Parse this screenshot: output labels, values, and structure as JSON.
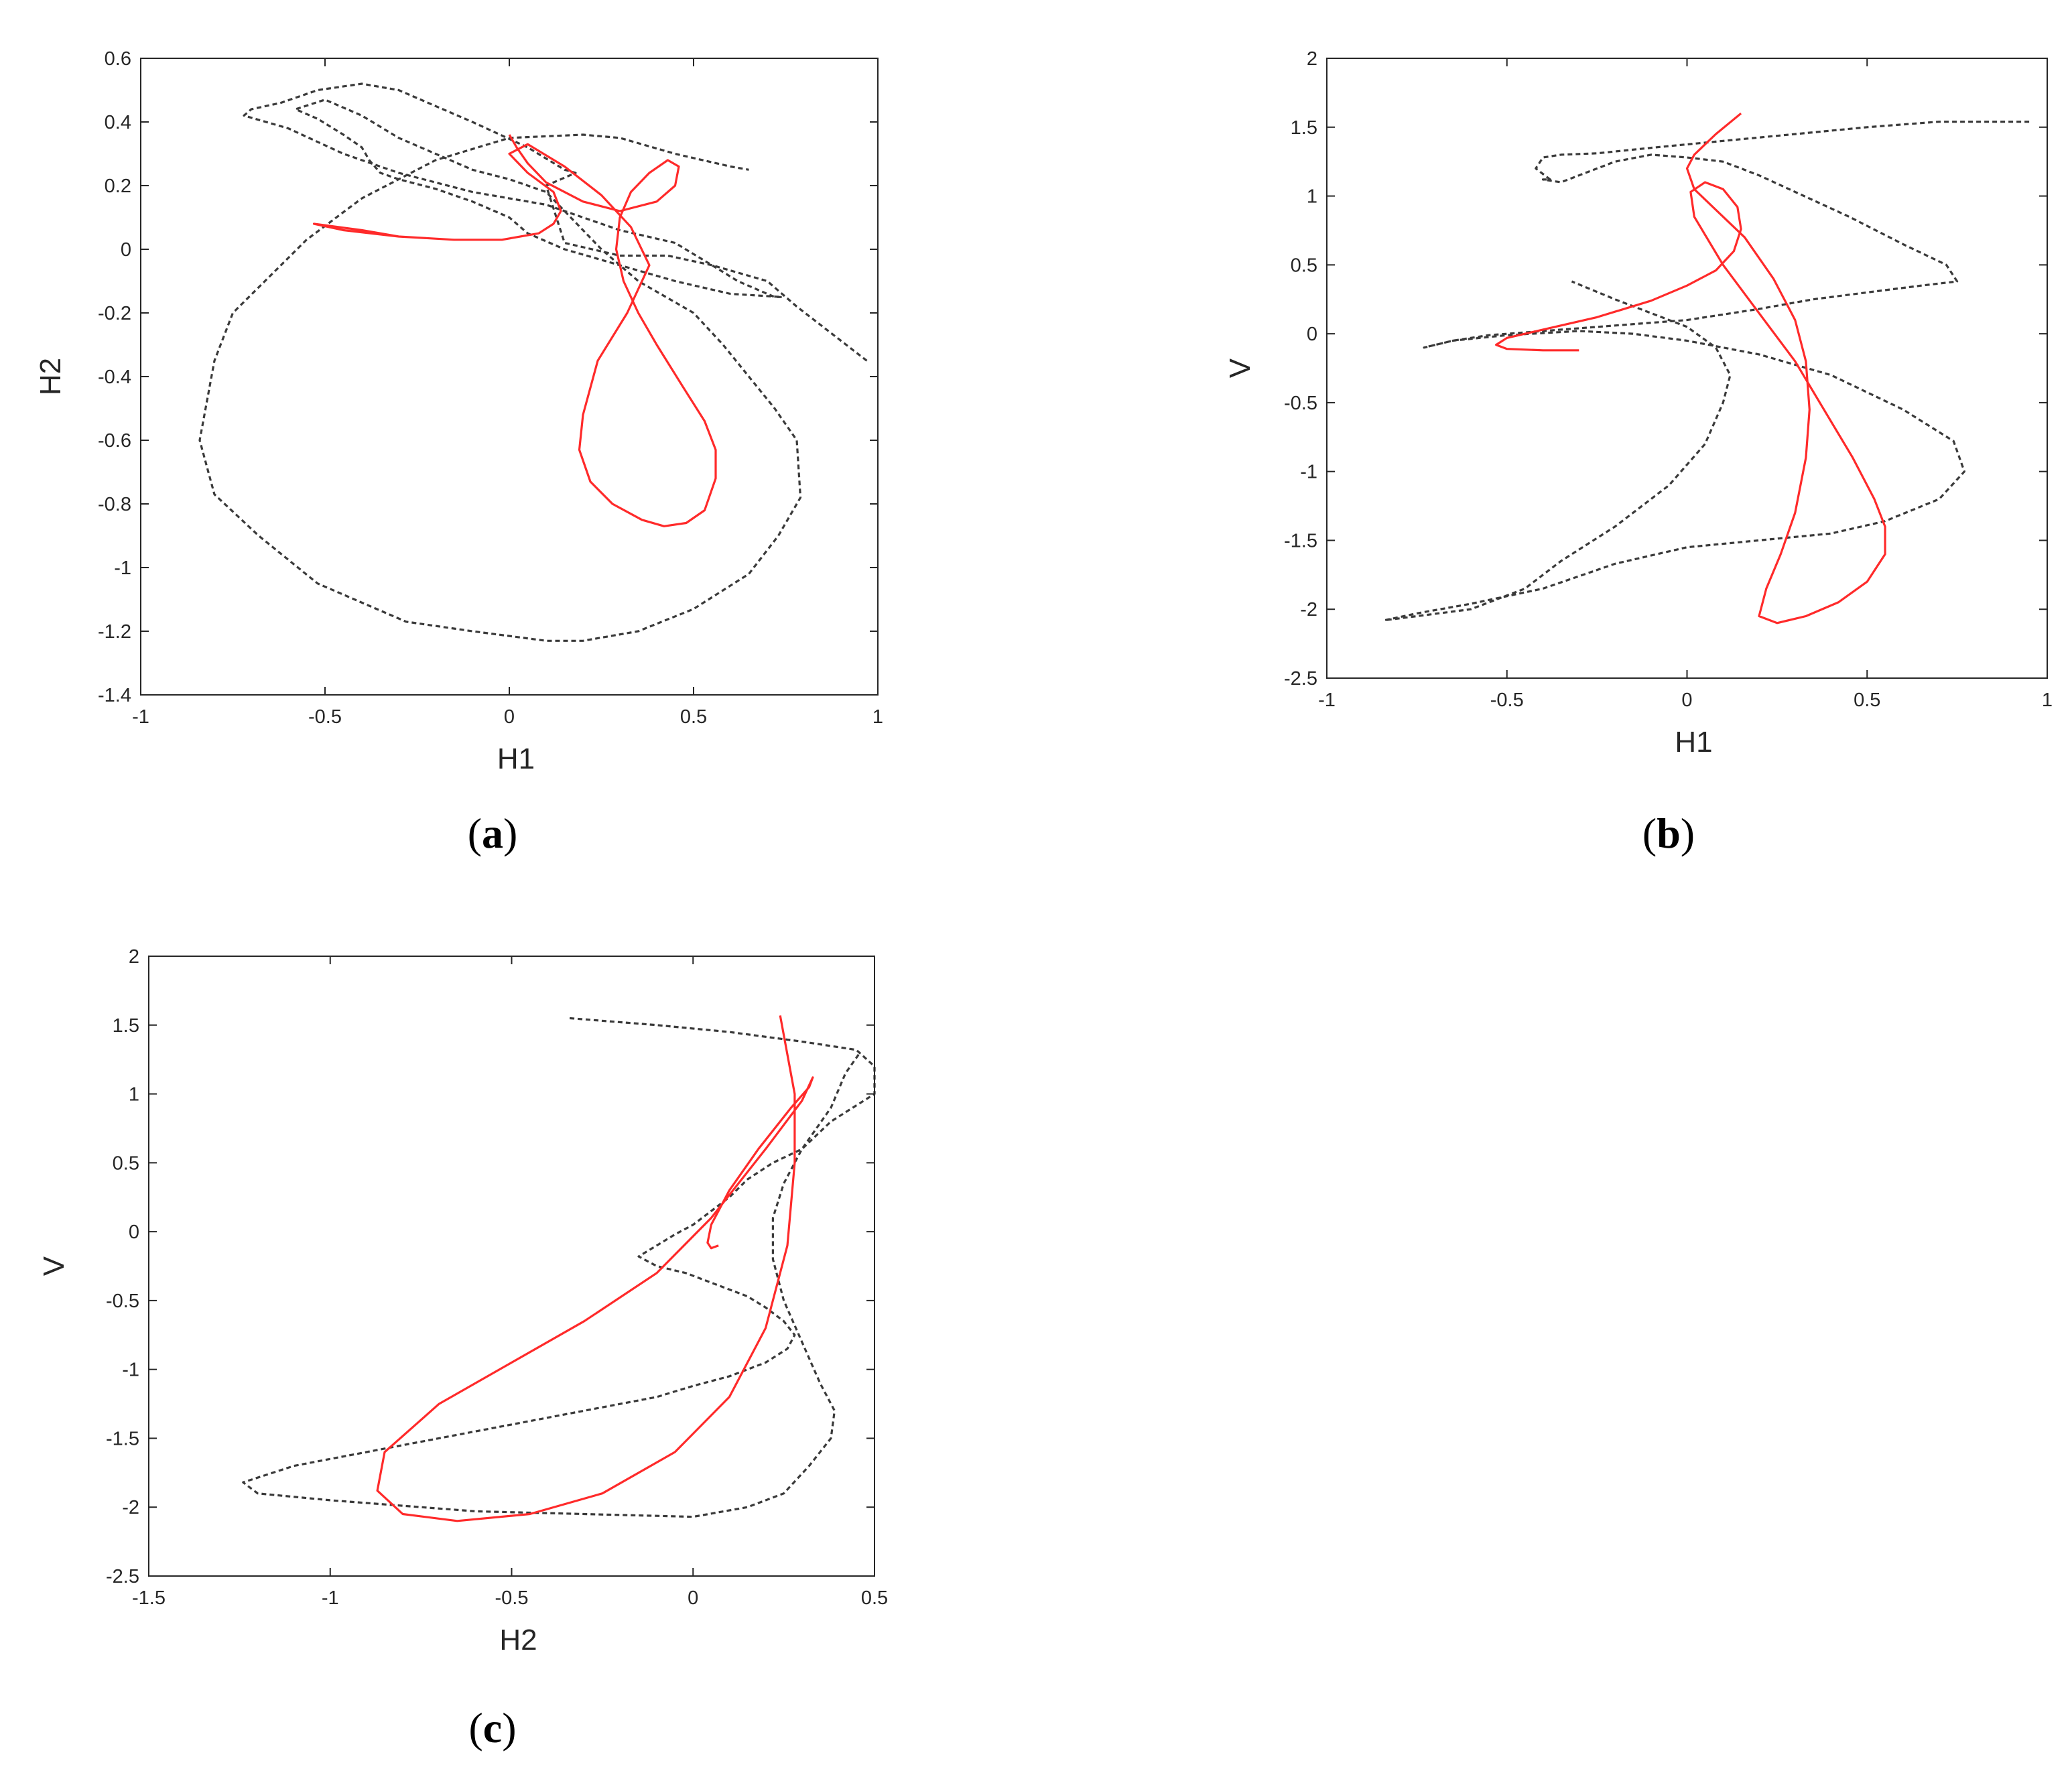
{
  "colors": {
    "reference": "#3a3a3a",
    "prediction": "#ff2a2a",
    "axis": "#262626"
  },
  "chart_data": [
    {
      "id": "a",
      "type": "line",
      "panel_label": "a",
      "xlabel": "H1",
      "ylabel": "H2",
      "xlim": [
        -1,
        1
      ],
      "ylim": [
        -1.4,
        0.6
      ],
      "xticks": [
        -1,
        -0.5,
        0,
        0.5,
        1
      ],
      "yticks": [
        -1.4,
        -1.2,
        -1,
        -0.8,
        -0.6,
        -0.4,
        -0.2,
        0,
        0.2,
        0.4,
        0.6
      ],
      "xtick_labels": [
        "-1",
        "-0.5",
        "0",
        "0.5",
        "1"
      ],
      "ytick_labels": [
        "-1.4",
        "-1.2",
        "-1",
        "-0.8",
        "-0.6",
        "-0.4",
        "-0.2",
        "0",
        "0.2",
        "0.4",
        "0.6"
      ],
      "series": [
        {
          "style": "dashed",
          "color": "#3a3a3a",
          "x": [
            0.97,
            0.78,
            0.7,
            0.55,
            0.43,
            0.3,
            0.15,
            0.1,
            0.18,
            0.15,
            0.05,
            -0.1,
            -0.2,
            -0.3,
            -0.4,
            -0.52,
            -0.62,
            -0.7,
            -0.72,
            -0.6,
            -0.45,
            -0.3,
            -0.1,
            0.1,
            0.2,
            0.3,
            0.45,
            0.55,
            0.62,
            0.72,
            0.74,
            0.6,
            0.45,
            0.3,
            0.15,
            0.05,
            0.0,
            -0.1,
            -0.2,
            -0.3,
            -0.35,
            -0.38,
            -0.4,
            -0.45,
            -0.52,
            -0.58,
            -0.5,
            -0.4,
            -0.3,
            -0.2,
            -0.1,
            0.0,
            0.05,
            0.1,
            0.15,
            0.25,
            0.35,
            0.5,
            0.58,
            0.65,
            0.72,
            0.78,
            0.79,
            0.73,
            0.65,
            0.5,
            0.35,
            0.2,
            0.1,
            -0.1,
            -0.28,
            -0.52,
            -0.68,
            -0.8,
            -0.84,
            -0.8,
            -0.75,
            -0.55,
            -0.4,
            -0.2,
            0.0,
            0.2,
            0.3,
            0.45,
            0.6,
            0.65
          ],
          "y": [
            -0.35,
            -0.18,
            -0.1,
            -0.05,
            -0.02,
            -0.02,
            0.02,
            0.2,
            0.24,
            0.25,
            0.32,
            0.4,
            0.45,
            0.5,
            0.52,
            0.5,
            0.46,
            0.44,
            0.42,
            0.38,
            0.3,
            0.24,
            0.18,
            0.14,
            0.1,
            0.06,
            0.02,
            -0.05,
            -0.1,
            -0.15,
            -0.15,
            -0.14,
            -0.1,
            -0.05,
            0.0,
            0.05,
            0.1,
            0.15,
            0.19,
            0.22,
            0.24,
            0.28,
            0.32,
            0.36,
            0.41,
            0.44,
            0.47,
            0.42,
            0.35,
            0.3,
            0.25,
            0.22,
            0.2,
            0.18,
            0.12,
            0.0,
            -0.1,
            -0.2,
            -0.3,
            -0.4,
            -0.5,
            -0.6,
            -0.78,
            -0.9,
            -1.02,
            -1.13,
            -1.2,
            -1.23,
            -1.23,
            -1.2,
            -1.17,
            -1.05,
            -0.9,
            -0.77,
            -0.6,
            -0.35,
            -0.2,
            0.03,
            0.16,
            0.28,
            0.35,
            0.36,
            0.35,
            0.3,
            0.26,
            0.25
          ]
        },
        {
          "style": "solid",
          "color": "#ff2a2a",
          "x": [
            -0.3,
            -0.4,
            -0.53,
            -0.45,
            -0.3,
            -0.15,
            -0.02,
            0.08,
            0.12,
            0.14,
            0.12,
            0.05,
            0.0,
            0.05,
            0.15,
            0.25,
            0.33,
            0.38,
            0.32,
            0.24,
            0.2,
            0.19,
            0.22,
            0.28,
            0.36,
            0.42,
            0.48,
            0.53,
            0.56,
            0.56,
            0.53,
            0.47,
            0.4,
            0.35,
            0.31,
            0.29,
            0.3,
            0.33,
            0.38,
            0.43,
            0.46,
            0.45,
            0.4,
            0.3,
            0.2,
            0.1,
            0.05,
            0.02,
            0.0
          ],
          "y": [
            0.04,
            0.06,
            0.08,
            0.06,
            0.04,
            0.03,
            0.03,
            0.05,
            0.08,
            0.12,
            0.18,
            0.24,
            0.3,
            0.33,
            0.26,
            0.17,
            0.07,
            -0.05,
            -0.2,
            -0.35,
            -0.52,
            -0.63,
            -0.73,
            -0.8,
            -0.85,
            -0.87,
            -0.86,
            -0.82,
            -0.72,
            -0.63,
            -0.54,
            -0.43,
            -0.3,
            -0.2,
            -0.1,
            0.0,
            0.1,
            0.18,
            0.24,
            0.28,
            0.26,
            0.2,
            0.15,
            0.12,
            0.15,
            0.21,
            0.27,
            0.32,
            0.36
          ]
        }
      ]
    },
    {
      "id": "b",
      "type": "line",
      "panel_label": "b",
      "xlabel": "H1",
      "ylabel": "V",
      "xlim": [
        -1,
        1
      ],
      "ylim": [
        -2.5,
        2
      ],
      "xticks": [
        -1,
        -0.5,
        0,
        0.5,
        1
      ],
      "yticks": [
        -2.5,
        -2,
        -1.5,
        -1,
        -0.5,
        0,
        0.5,
        1,
        1.5,
        2
      ],
      "xtick_labels": [
        "-1",
        "-0.5",
        "0",
        "0.5",
        "1"
      ],
      "ytick_labels": [
        "-2.5",
        "-2",
        "-1.5",
        "-1",
        "-0.5",
        "0",
        "0.5",
        "1",
        "1.5",
        "2"
      ],
      "series": [
        {
          "style": "dashed",
          "color": "#3a3a3a",
          "x": [
            0.95,
            0.7,
            0.5,
            0.3,
            0.1,
            -0.1,
            -0.25,
            -0.35,
            -0.4,
            -0.42,
            -0.38,
            -0.4,
            -0.35,
            -0.3,
            -0.2,
            -0.1,
            0.0,
            0.1,
            0.2,
            0.3,
            0.45,
            0.6,
            0.72,
            0.75,
            0.65,
            0.5,
            0.35,
            0.2,
            0.0,
            -0.2,
            -0.4,
            -0.55,
            -0.65,
            -0.73,
            -0.65,
            -0.5,
            -0.3,
            -0.15,
            0.0,
            0.1,
            0.2,
            0.4,
            0.6,
            0.74,
            0.77,
            0.7,
            0.55,
            0.4,
            0.2,
            0.0,
            -0.2,
            -0.4,
            -0.6,
            -0.75,
            -0.84,
            -0.6,
            -0.45,
            -0.35,
            -0.2,
            -0.05,
            0.05,
            0.1,
            0.12,
            0.08,
            0.0,
            -0.1,
            -0.2,
            -0.32
          ],
          "y": [
            1.54,
            1.54,
            1.5,
            1.45,
            1.4,
            1.35,
            1.31,
            1.3,
            1.28,
            1.2,
            1.12,
            1.12,
            1.1,
            1.15,
            1.25,
            1.3,
            1.28,
            1.25,
            1.15,
            1.03,
            0.85,
            0.65,
            0.5,
            0.38,
            0.35,
            0.3,
            0.25,
            0.18,
            0.1,
            0.06,
            0.02,
            -0.01,
            -0.05,
            -0.1,
            -0.05,
            -0.01,
            0.02,
            0.0,
            -0.05,
            -0.1,
            -0.15,
            -0.3,
            -0.55,
            -0.78,
            -1.0,
            -1.2,
            -1.36,
            -1.45,
            -1.5,
            -1.55,
            -1.67,
            -1.85,
            -1.96,
            -2.03,
            -2.08,
            -2.0,
            -1.85,
            -1.65,
            -1.4,
            -1.1,
            -0.8,
            -0.5,
            -0.3,
            -0.1,
            0.05,
            0.15,
            0.25,
            0.38
          ]
        },
        {
          "style": "solid",
          "color": "#ff2a2a",
          "x": [
            -0.3,
            -0.4,
            -0.5,
            -0.53,
            -0.5,
            -0.4,
            -0.25,
            -0.1,
            0.0,
            0.08,
            0.13,
            0.15,
            0.14,
            0.1,
            0.05,
            0.01,
            0.02,
            0.1,
            0.2,
            0.3,
            0.38,
            0.46,
            0.52,
            0.55,
            0.55,
            0.5,
            0.42,
            0.33,
            0.25,
            0.2,
            0.22,
            0.26,
            0.3,
            0.33,
            0.34,
            0.33,
            0.3,
            0.24,
            0.16,
            0.08,
            0.02,
            0.0,
            0.02,
            0.08,
            0.15
          ],
          "y": [
            -0.12,
            -0.12,
            -0.11,
            -0.08,
            -0.03,
            0.03,
            0.12,
            0.24,
            0.35,
            0.46,
            0.6,
            0.76,
            0.92,
            1.05,
            1.1,
            1.03,
            0.85,
            0.5,
            0.15,
            -0.2,
            -0.55,
            -0.9,
            -1.2,
            -1.4,
            -1.6,
            -1.8,
            -1.95,
            -2.05,
            -2.1,
            -2.05,
            -1.85,
            -1.6,
            -1.3,
            -0.9,
            -0.55,
            -0.2,
            0.1,
            0.4,
            0.7,
            0.9,
            1.05,
            1.2,
            1.3,
            1.45,
            1.6
          ]
        }
      ]
    },
    {
      "id": "c",
      "type": "line",
      "panel_label": "c",
      "xlabel": "H2",
      "ylabel": "V",
      "xlim": [
        -1.5,
        0.5
      ],
      "ylim": [
        -2.5,
        2
      ],
      "xticks": [
        -1.5,
        -1,
        -0.5,
        0,
        0.5
      ],
      "yticks": [
        -2.5,
        -2,
        -1.5,
        -1,
        -0.5,
        0,
        0.5,
        1,
        1.5,
        2
      ],
      "xtick_labels": [
        "-1.5",
        "-1",
        "-0.5",
        "0",
        "0.5"
      ],
      "ytick_labels": [
        "-2.5",
        "-2",
        "-1.5",
        "-1",
        "-0.5",
        "0",
        "0.5",
        "1",
        "1.5",
        "2"
      ],
      "series": [
        {
          "style": "dashed",
          "color": "#3a3a3a",
          "x": [
            -0.34,
            -0.1,
            0.1,
            0.3,
            0.45,
            0.5,
            0.5,
            0.44,
            0.38,
            0.34,
            0.3,
            0.22,
            0.15,
            0.1,
            0.05,
            0.0,
            -0.05,
            -0.1,
            -0.15,
            -0.1,
            -0.02,
            0.06,
            0.15,
            0.2,
            0.25,
            0.28,
            0.26,
            0.2,
            0.1,
            0.0,
            -0.1,
            -0.3,
            -0.5,
            -0.7,
            -0.9,
            -1.1,
            -1.24,
            -1.2,
            -1.0,
            -0.6,
            -0.3,
            0.0,
            0.15,
            0.25,
            0.32,
            0.38,
            0.39,
            0.35,
            0.3,
            0.25,
            0.22,
            0.22,
            0.25,
            0.3,
            0.38,
            0.42,
            0.46
          ],
          "y": [
            1.55,
            1.5,
            1.45,
            1.38,
            1.32,
            1.2,
            1.0,
            0.9,
            0.8,
            0.7,
            0.6,
            0.5,
            0.38,
            0.25,
            0.15,
            0.05,
            -0.02,
            -0.1,
            -0.18,
            -0.25,
            -0.3,
            -0.38,
            -0.47,
            -0.55,
            -0.65,
            -0.75,
            -0.85,
            -0.95,
            -1.05,
            -1.12,
            -1.2,
            -1.3,
            -1.4,
            -1.5,
            -1.6,
            -1.7,
            -1.82,
            -1.9,
            -1.95,
            -2.03,
            -2.05,
            -2.07,
            -2.0,
            -1.9,
            -1.7,
            -1.5,
            -1.3,
            -1.1,
            -0.8,
            -0.5,
            -0.2,
            0.1,
            0.35,
            0.6,
            0.9,
            1.15,
            1.3
          ]
        },
        {
          "style": "solid",
          "color": "#ff2a2a",
          "x": [
            0.07,
            0.05,
            0.04,
            0.05,
            0.1,
            0.18,
            0.27,
            0.32,
            0.33,
            0.3,
            0.2,
            0.05,
            -0.1,
            -0.3,
            -0.5,
            -0.7,
            -0.85,
            -0.87,
            -0.8,
            -0.65,
            -0.45,
            -0.25,
            -0.05,
            0.1,
            0.2,
            0.26,
            0.28,
            0.28,
            0.24
          ],
          "y": [
            -0.1,
            -0.12,
            -0.08,
            0.05,
            0.3,
            0.6,
            0.9,
            1.05,
            1.12,
            0.95,
            0.6,
            0.1,
            -0.3,
            -0.65,
            -0.95,
            -1.25,
            -1.6,
            -1.88,
            -2.05,
            -2.1,
            -2.05,
            -1.9,
            -1.6,
            -1.2,
            -0.7,
            -0.1,
            0.5,
            1.0,
            1.57
          ]
        }
      ]
    }
  ]
}
